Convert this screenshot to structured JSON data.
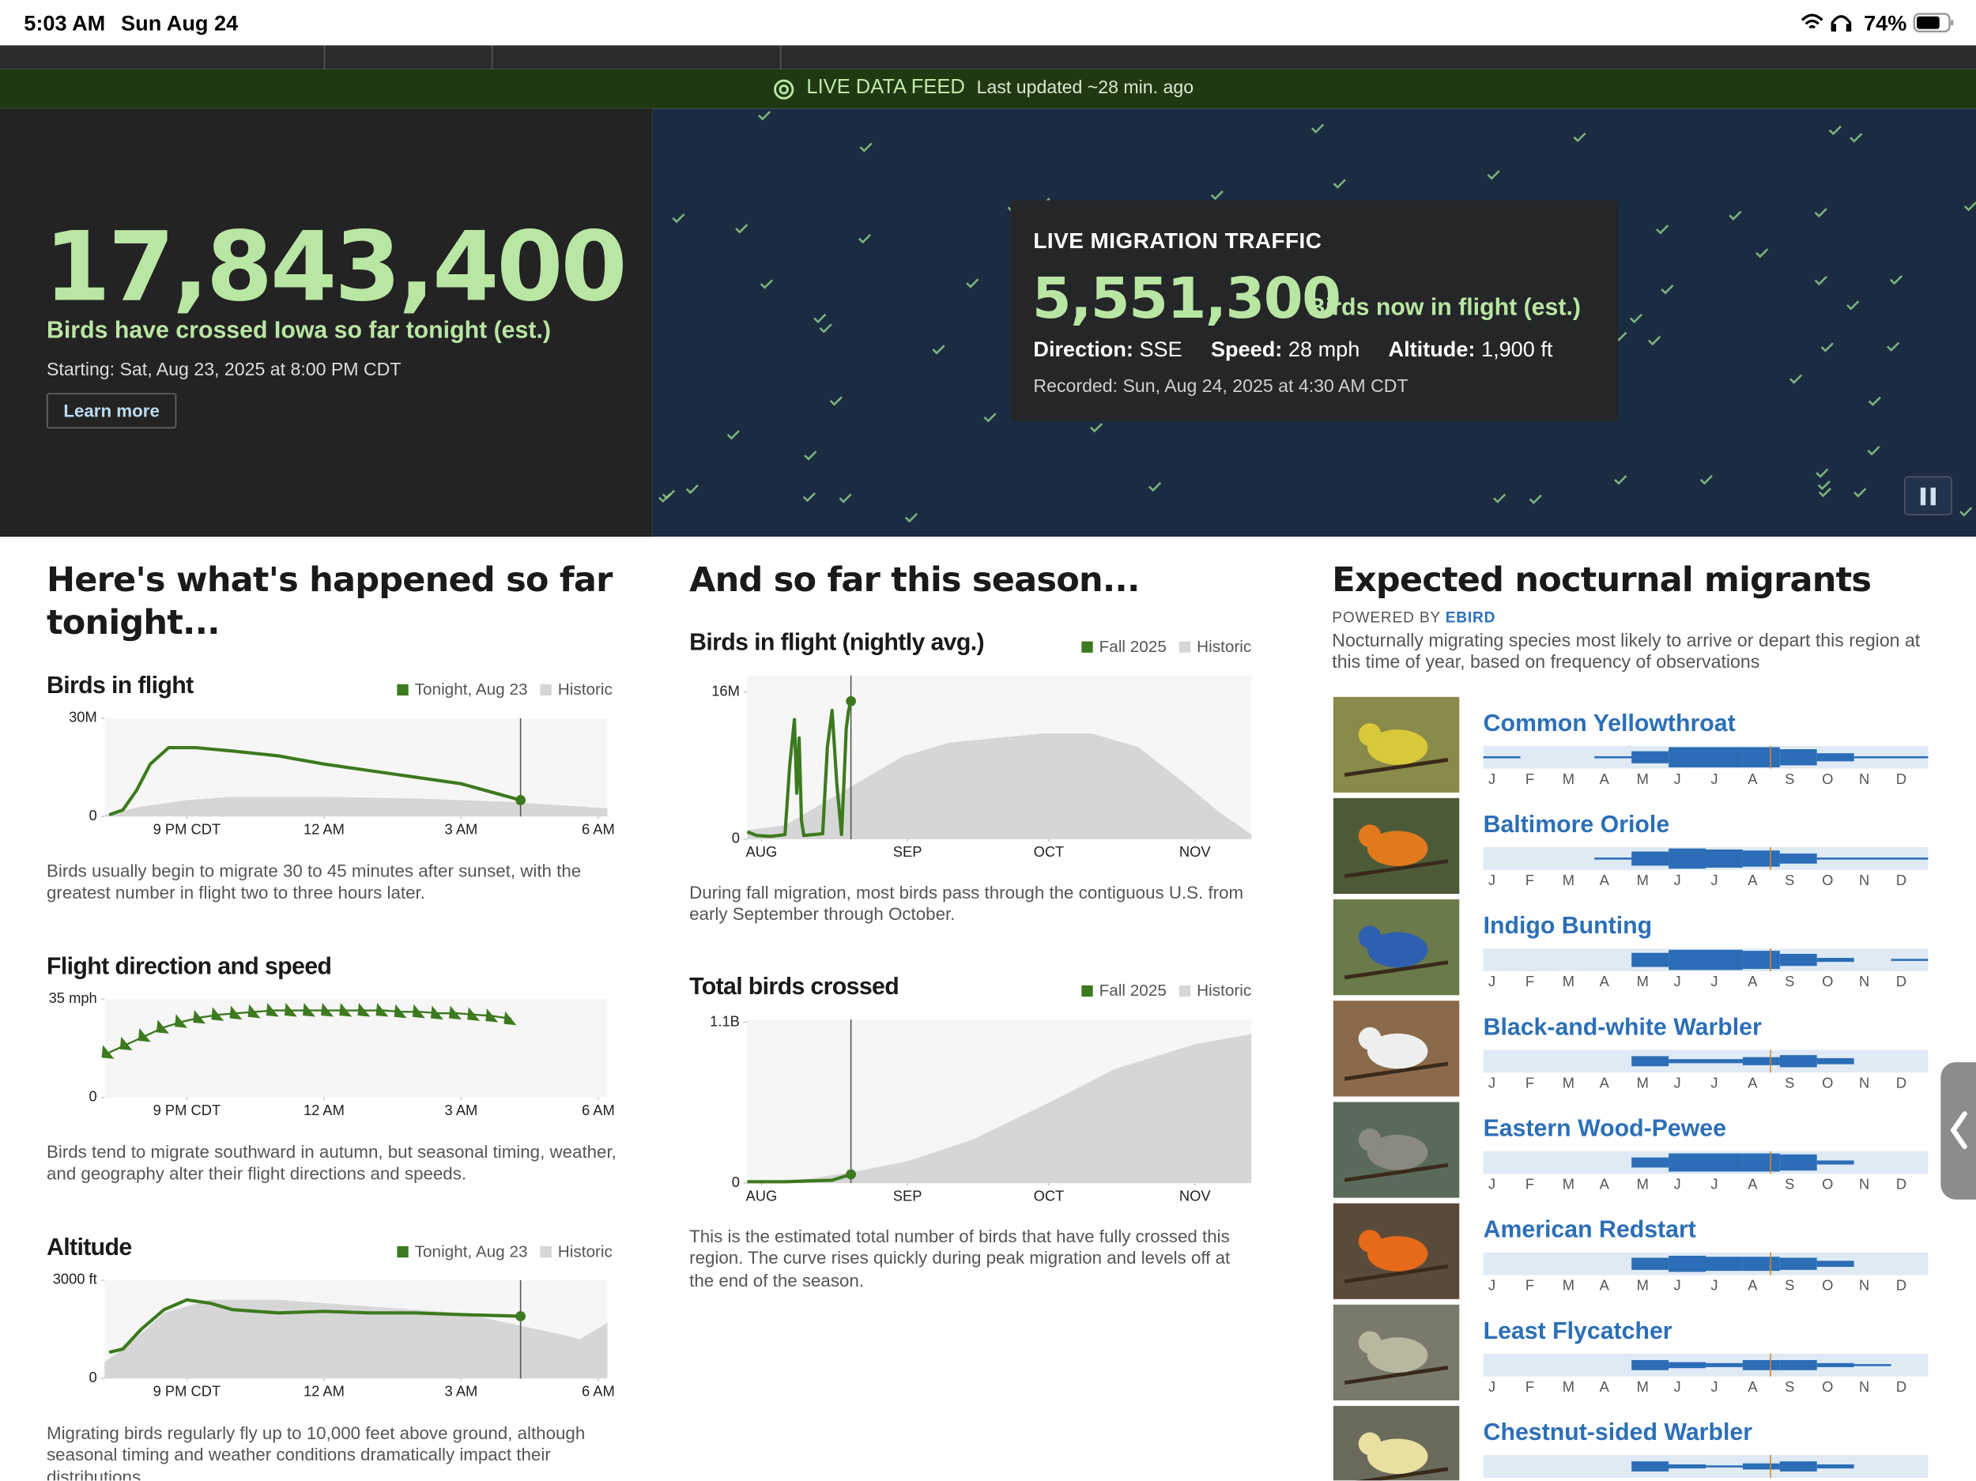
{
  "status_bar": {
    "time": "5:03 AM",
    "date": "Sun Aug 24",
    "battery": "74%"
  },
  "feed_bar": {
    "label": "LIVE DATA FEED",
    "updated": "Last updated ~28 min. ago"
  },
  "hero": {
    "total": "17,843,400",
    "total_caption": "Birds have crossed Iowa so far tonight (est.)",
    "starting": "Starting: Sat, Aug 23, 2025 at 8:00 PM CDT",
    "button": "Learn more"
  },
  "live_traffic": {
    "title": "LIVE MIGRATION TRAFFIC",
    "count": "5,551,300",
    "count_caption": "Birds now in flight (est.)",
    "direction_label": "Direction:",
    "direction": "SSE",
    "speed_label": "Speed:",
    "speed": "28 mph",
    "altitude_label": "Altitude:",
    "altitude": "1,900 ft",
    "recorded": "Recorded: Sun, Aug 24, 2025 at 4:30 AM CDT"
  },
  "tonight": {
    "heading": "Here's what's happened so far tonight...",
    "charts": [
      {
        "type": "line",
        "title": "Birds in flight",
        "caption": "Birds usually begin to migrate 30 to 45 minutes after sunset, with the greatest number in flight two to three hours later.",
        "xlim": [
          -0.8,
          10.2
        ],
        "ylim": [
          0,
          30
        ],
        "xticks": [
          {
            "value": 1,
            "label": "9 PM CDT"
          },
          {
            "value": 4,
            "label": "12 AM"
          },
          {
            "value": 7,
            "label": "3 AM"
          },
          {
            "value": 10,
            "label": "6 AM"
          }
        ],
        "yticks": [
          {
            "value": 30,
            "label": "30M"
          },
          0
        ],
        "series": [
          {
            "name": "Tonight, Aug 23",
            "color": "#3d7a1f",
            "x": [
              -0.7,
              -0.4,
              -0.1,
              0.2,
              0.6,
              1.2,
              2,
              3,
              4,
              5,
              6,
              7,
              8.3
            ],
            "values": [
              0.5,
              2,
              8,
              16,
              21,
              21,
              20,
              18.5,
              16,
              14,
              12,
              10,
              5
            ]
          },
          {
            "name": "Historic",
            "color": "#d6d6d6",
            "x": [
              -0.8,
              0,
              1,
              2,
              4,
              6,
              8,
              10.2
            ],
            "values": [
              0.5,
              3,
              5,
              6,
              6,
              5.5,
              4.5,
              2.5
            ]
          }
        ]
      },
      {
        "type": "line",
        "title": "Flight direction and speed",
        "caption": "Birds tend to migrate southward in autumn, but seasonal timing, weather, and geography alter their flight directions and speeds.",
        "xlim": [
          -0.8,
          10.2
        ],
        "ylim": [
          0,
          35
        ],
        "xticks": [
          {
            "value": 1,
            "label": "9 PM CDT"
          },
          {
            "value": 4,
            "label": "12 AM"
          },
          {
            "value": 7,
            "label": "3 AM"
          },
          {
            "value": 10,
            "label": "6 AM"
          }
        ],
        "yticks": [
          {
            "value": 35,
            "label": "35 mph"
          },
          0
        ],
        "series": [
          {
            "color": "#3d7a1f",
            "x": [
              -0.7,
              -0.3,
              0.1,
              0.5,
              0.9,
              1.3,
              1.7,
              2.1,
              2.5,
              2.9,
              3.3,
              3.7,
              4.1,
              4.5,
              4.9,
              5.3,
              5.7,
              6.1,
              6.5,
              6.9,
              7.3,
              7.7,
              8.1
            ],
            "values": [
              16,
              19,
              22,
              25,
              27,
              28.5,
              29.5,
              30,
              30.5,
              31,
              31,
              31,
              31,
              31,
              31,
              31,
              30.5,
              30.5,
              30,
              30,
              29.5,
              29,
              28
            ]
          }
        ]
      },
      {
        "type": "line",
        "title": "Altitude",
        "caption": "Migrating birds regularly fly up to 10,000 feet above ground, although seasonal timing and weather conditions dramatically impact their distributions.",
        "xlim": [
          -0.8,
          10.2
        ],
        "ylim": [
          0,
          3000
        ],
        "xticks": [
          {
            "value": 1,
            "label": "9 PM CDT"
          },
          {
            "value": 4,
            "label": "12 AM"
          },
          {
            "value": 7,
            "label": "3 AM"
          },
          {
            "value": 10,
            "label": "6 AM"
          }
        ],
        "yticks": [
          {
            "value": 3000,
            "label": "3000 ft"
          },
          0
        ],
        "series": [
          {
            "name": "Tonight, Aug 23",
            "color": "#3d7a1f",
            "x": [
              -0.7,
              -0.4,
              0,
              0.5,
              1,
              1.5,
              2,
              3,
              4,
              5,
              6,
              7,
              8.3
            ],
            "values": [
              800,
              900,
              1500,
              2100,
              2400,
              2300,
              2100,
              2000,
              2050,
              2000,
              2000,
              1950,
              1900
            ]
          },
          {
            "name": "Historic",
            "color": "#d6d6d6",
            "x": [
              -0.8,
              -0.3,
              0.5,
              1.5,
              3,
              5,
              7,
              9,
              9.6,
              10.2
            ],
            "values": [
              500,
              1000,
              2000,
              2400,
              2400,
              2200,
              2000,
              1400,
              1200,
              1700
            ]
          }
        ]
      }
    ]
  },
  "season": {
    "heading": "And so far this season...",
    "charts": [
      {
        "type": "line",
        "title": "Birds in flight (nightly avg.)",
        "caption": "During fall migration, most birds pass through the contiguous U.S. from early September through October.",
        "xlim": [
          -3,
          104
        ],
        "ylim": [
          0,
          17.8
        ],
        "xticks": [
          {
            "value": 0,
            "label": "AUG"
          },
          {
            "value": 31,
            "label": "SEP"
          },
          {
            "value": 61,
            "label": "OCT"
          },
          {
            "value": 92,
            "label": "NOV"
          }
        ],
        "yticks": [
          {
            "value": 16,
            "label": "16M"
          },
          0
        ],
        "series": [
          {
            "name": "Fall 2025",
            "color": "#3d7a1f",
            "x": [
              -3,
              -1,
              2,
              5,
              6,
              7,
              7.5,
              8,
              8.5,
              9,
              11,
              13,
              14,
              15,
              16,
              17,
              17.5,
              18,
              18.5,
              19
            ],
            "values": [
              0.8,
              0.4,
              0.3,
              0.5,
              8,
              13,
              5,
              11,
              2,
              0.4,
              0.5,
              0.6,
              10,
              14,
              6,
              0.5,
              6,
              12,
              14,
              15
            ]
          },
          {
            "name": "Historic",
            "color": "#d6d6d6",
            "x": [
              -3,
              5,
              10,
              20,
              30,
              40,
              50,
              60,
              70,
              80,
              90,
              97,
              104
            ],
            "values": [
              1,
              1.5,
              3,
              6,
              9,
              10.5,
              11,
              11.5,
              11.5,
              10,
              6,
              3,
              0.5
            ]
          }
        ]
      },
      {
        "type": "line",
        "title": "Total birds crossed",
        "caption": "This is the estimated total number of birds that have fully crossed this region. The curve rises quickly during peak migration and levels off at the end of the season.",
        "xlim": [
          -3,
          104
        ],
        "ylim": [
          0,
          1.12
        ],
        "xticks": [
          {
            "value": 0,
            "label": "AUG"
          },
          {
            "value": 31,
            "label": "SEP"
          },
          {
            "value": 61,
            "label": "OCT"
          },
          {
            "value": 92,
            "label": "NOV"
          }
        ],
        "yticks": [
          {
            "value": 1.1,
            "label": "1.1B"
          },
          0
        ],
        "series": [
          {
            "name": "Fall 2025",
            "color": "#3d7a1f",
            "x": [
              -3,
              5,
              10,
              15,
              19
            ],
            "values": [
              0.01,
              0.01,
              0.015,
              0.02,
              0.06
            ]
          },
          {
            "name": "Historic",
            "color": "#d6d6d6",
            "x": [
              -3,
              10,
              20,
              31,
              45,
              61,
              75,
              92,
              104
            ],
            "values": [
              0.01,
              0.03,
              0.08,
              0.15,
              0.3,
              0.55,
              0.78,
              0.95,
              1.02
            ]
          }
        ]
      }
    ]
  },
  "migrants": {
    "heading": "Expected nocturnal migrants",
    "powered_by": "POWERED BY",
    "source": "EBIRD",
    "description": "Nocturnally migrating species most likely to arrive or depart this region at this time of year, based on frequency of observations",
    "months": [
      "J",
      "F",
      "M",
      "A",
      "M",
      "J",
      "J",
      "A",
      "S",
      "O",
      "N",
      "D"
    ],
    "species": [
      {
        "name": "Common Yellowthroat",
        "frequency": [
          0.1,
          0,
          0,
          0.1,
          0.6,
          1,
          1,
          1,
          0.8,
          0.4,
          0.1,
          0.1
        ]
      },
      {
        "name": "Baltimore Oriole",
        "frequency": [
          0,
          0,
          0,
          0.1,
          0.7,
          1,
          0.9,
          0.8,
          0.5,
          0.1,
          0.1,
          0.1
        ]
      },
      {
        "name": "Indigo Bunting",
        "frequency": [
          0,
          0,
          0,
          0,
          0.7,
          1,
          1,
          0.9,
          0.6,
          0.2,
          0,
          0.1
        ]
      },
      {
        "name": "Black-and-white Warbler",
        "frequency": [
          0,
          0,
          0,
          0,
          0.5,
          0.2,
          0.2,
          0.4,
          0.6,
          0.3,
          0,
          0
        ]
      },
      {
        "name": "Eastern Wood-Pewee",
        "frequency": [
          0,
          0,
          0,
          0,
          0.5,
          0.9,
          0.9,
          0.9,
          0.8,
          0.2,
          0,
          0
        ]
      },
      {
        "name": "American Redstart",
        "frequency": [
          0,
          0,
          0,
          0,
          0.6,
          0.8,
          0.7,
          0.7,
          0.6,
          0.3,
          0,
          0
        ]
      },
      {
        "name": "Least Flycatcher",
        "frequency": [
          0,
          0,
          0,
          0,
          0.5,
          0.3,
          0.2,
          0.5,
          0.5,
          0.2,
          0.1,
          0
        ]
      },
      {
        "name": "Chestnut-sided Warbler",
        "frequency": [
          0,
          0,
          0,
          0,
          0.5,
          0.2,
          0.1,
          0.3,
          0.5,
          0.2,
          0,
          0
        ]
      }
    ]
  }
}
